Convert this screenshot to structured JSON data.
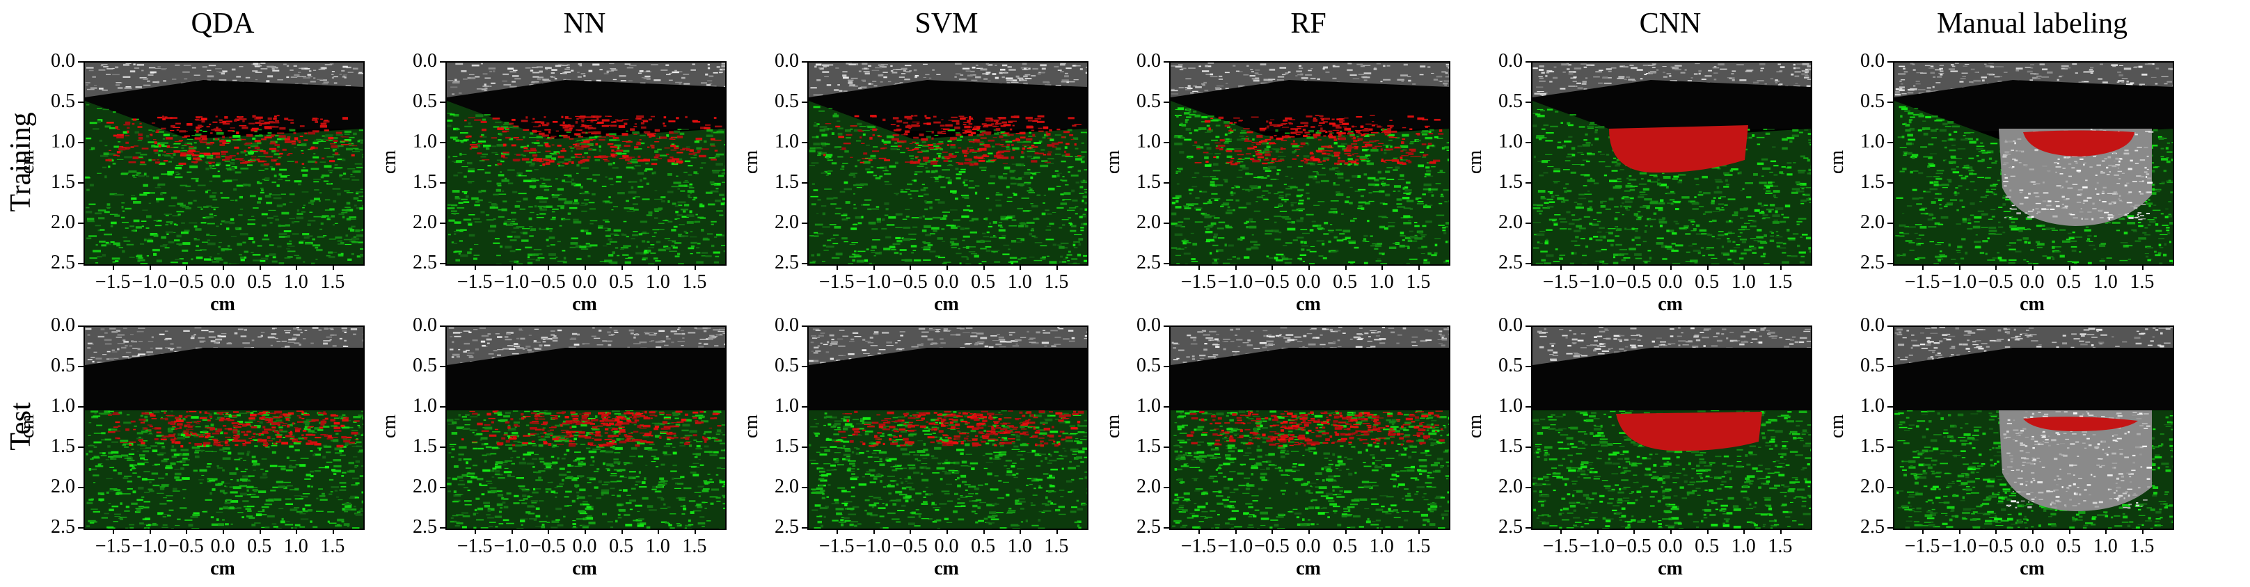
{
  "columns": [
    "QDA",
    "NN",
    "SVM",
    "RF",
    "CNN",
    "Manual labeling"
  ],
  "rows": [
    "Training",
    "Test"
  ],
  "axes": {
    "xlabel": "cm",
    "ylabel": "cm",
    "yticks": [
      "0.0",
      "0.5",
      "1.0",
      "1.5",
      "2.0",
      "2.5"
    ],
    "xticks": [
      "−1.5",
      "−1.0",
      "−0.5",
      "0.0",
      "0.5",
      "1.0",
      "1.5"
    ]
  },
  "colors": {
    "tissue_green": "#2fae2f",
    "lesion_red": "#c41414",
    "background": "#000000",
    "speckle_gray": "#9a9a9a"
  }
}
